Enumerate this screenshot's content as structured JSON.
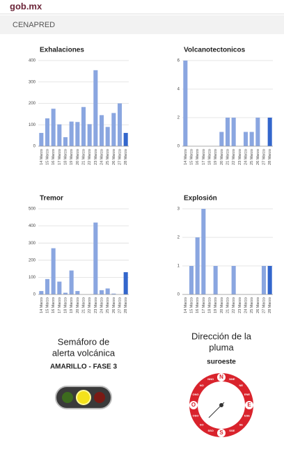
{
  "header": {
    "brand": "gob.mx",
    "section": "CENAPRED"
  },
  "chart_data": [
    {
      "type": "bar",
      "title": "Exhalaciones",
      "categories": [
        "14 Marzo",
        "15 Marzo",
        "16 Marzo",
        "17 Marzo",
        "18 Marzo",
        "19 Marzo",
        "20 Marzo",
        "21 Marzo",
        "22 Marzo",
        "23 Marzo",
        "24 Marzo",
        "25 Marzo",
        "26 Marzo",
        "27 Marzo",
        "28 Marzo"
      ],
      "values": [
        62,
        130,
        175,
        102,
        42,
        115,
        113,
        183,
        103,
        355,
        145,
        90,
        155,
        200,
        62
      ],
      "colors": [
        "#8aa6e0",
        "#8aa6e0",
        "#8aa6e0",
        "#8aa6e0",
        "#8aa6e0",
        "#8aa6e0",
        "#8aa6e0",
        "#8aa6e0",
        "#8aa6e0",
        "#8aa6e0",
        "#8aa6e0",
        "#8aa6e0",
        "#8aa6e0",
        "#8aa6e0",
        "#3366cc"
      ],
      "ylim": [
        0,
        400
      ],
      "yticks": [
        0,
        100,
        200,
        300,
        400
      ],
      "grid": true
    },
    {
      "type": "bar",
      "title": "Volcanotectonicos",
      "categories": [
        "14 Marzo",
        "15 Marzo",
        "16 Marzo",
        "17 Marzo",
        "18 Marzo",
        "19 Marzo",
        "20 Marzo",
        "21 Marzo",
        "22 Marzo",
        "23 Marzo",
        "24 Marzo",
        "25 Marzo",
        "26 Marzo",
        "27 Marzo",
        "28 Marzo"
      ],
      "values": [
        6,
        0,
        0,
        0,
        0,
        0,
        1,
        2,
        2,
        0,
        1,
        1,
        2,
        0,
        2
      ],
      "colors": [
        "#8aa6e0",
        "#8aa6e0",
        "#8aa6e0",
        "#8aa6e0",
        "#8aa6e0",
        "#8aa6e0",
        "#8aa6e0",
        "#8aa6e0",
        "#8aa6e0",
        "#8aa6e0",
        "#8aa6e0",
        "#8aa6e0",
        "#8aa6e0",
        "#8aa6e0",
        "#3366cc"
      ],
      "ylim": [
        0,
        6
      ],
      "yticks": [
        0,
        2,
        4,
        6
      ],
      "grid": true
    },
    {
      "type": "bar",
      "title": "Tremor",
      "categories": [
        "14 Marzo",
        "15 Marzo",
        "16 Marzo",
        "17 Marzo",
        "18 Marzo",
        "19 Marzo",
        "20 Marzo",
        "21 Marzo",
        "22 Marzo",
        "23 Marzo",
        "24 Marzo",
        "25 Marzo",
        "26 Marzo",
        "27 Marzo",
        "28 Marzo"
      ],
      "values": [
        20,
        90,
        270,
        75,
        10,
        140,
        20,
        0,
        0,
        420,
        25,
        35,
        5,
        0,
        130
      ],
      "colors": [
        "#8aa6e0",
        "#8aa6e0",
        "#8aa6e0",
        "#8aa6e0",
        "#8aa6e0",
        "#8aa6e0",
        "#8aa6e0",
        "#8aa6e0",
        "#8aa6e0",
        "#8aa6e0",
        "#8aa6e0",
        "#8aa6e0",
        "#8aa6e0",
        "#8aa6e0",
        "#3366cc"
      ],
      "ylim": [
        0,
        500
      ],
      "yticks": [
        0,
        100,
        200,
        300,
        400,
        500
      ],
      "grid": true
    },
    {
      "type": "bar",
      "title": "Explosión",
      "categories": [
        "14 Marzo",
        "15 Marzo",
        "16 Marzo",
        "17 Marzo",
        "18 Marzo",
        "19 Marzo",
        "20 Marzo",
        "21 Marzo",
        "22 Marzo",
        "23 Marzo",
        "24 Marzo",
        "25 Marzo",
        "26 Marzo",
        "27 Marzo",
        "28 Marzo"
      ],
      "values": [
        0,
        1,
        2,
        3,
        0,
        1,
        0,
        0,
        1,
        0,
        0,
        0,
        0,
        1,
        1
      ],
      "colors": [
        "#8aa6e0",
        "#8aa6e0",
        "#8aa6e0",
        "#8aa6e0",
        "#8aa6e0",
        "#8aa6e0",
        "#8aa6e0",
        "#8aa6e0",
        "#8aa6e0",
        "#8aa6e0",
        "#8aa6e0",
        "#8aa6e0",
        "#8aa6e0",
        "#8aa6e0",
        "#3366cc"
      ],
      "ylim": [
        0,
        3
      ],
      "yticks": [
        0,
        1,
        2,
        3
      ],
      "grid": true
    }
  ],
  "semaforo": {
    "title_line1": "Semáforo de",
    "title_line2": "alerta volcánica",
    "status": "AMARILLO  - FASE 3"
  },
  "pluma": {
    "title_line1": "Dirección de la",
    "title_line2": "pluma",
    "direction": "suroeste",
    "compass": [
      "N",
      "NNE",
      "NE",
      "ENE",
      "E",
      "ESE",
      "SE",
      "SSE",
      "S",
      "SSO",
      "SO",
      "OSO",
      "O",
      "ONO",
      "NO",
      "NNO"
    ]
  }
}
